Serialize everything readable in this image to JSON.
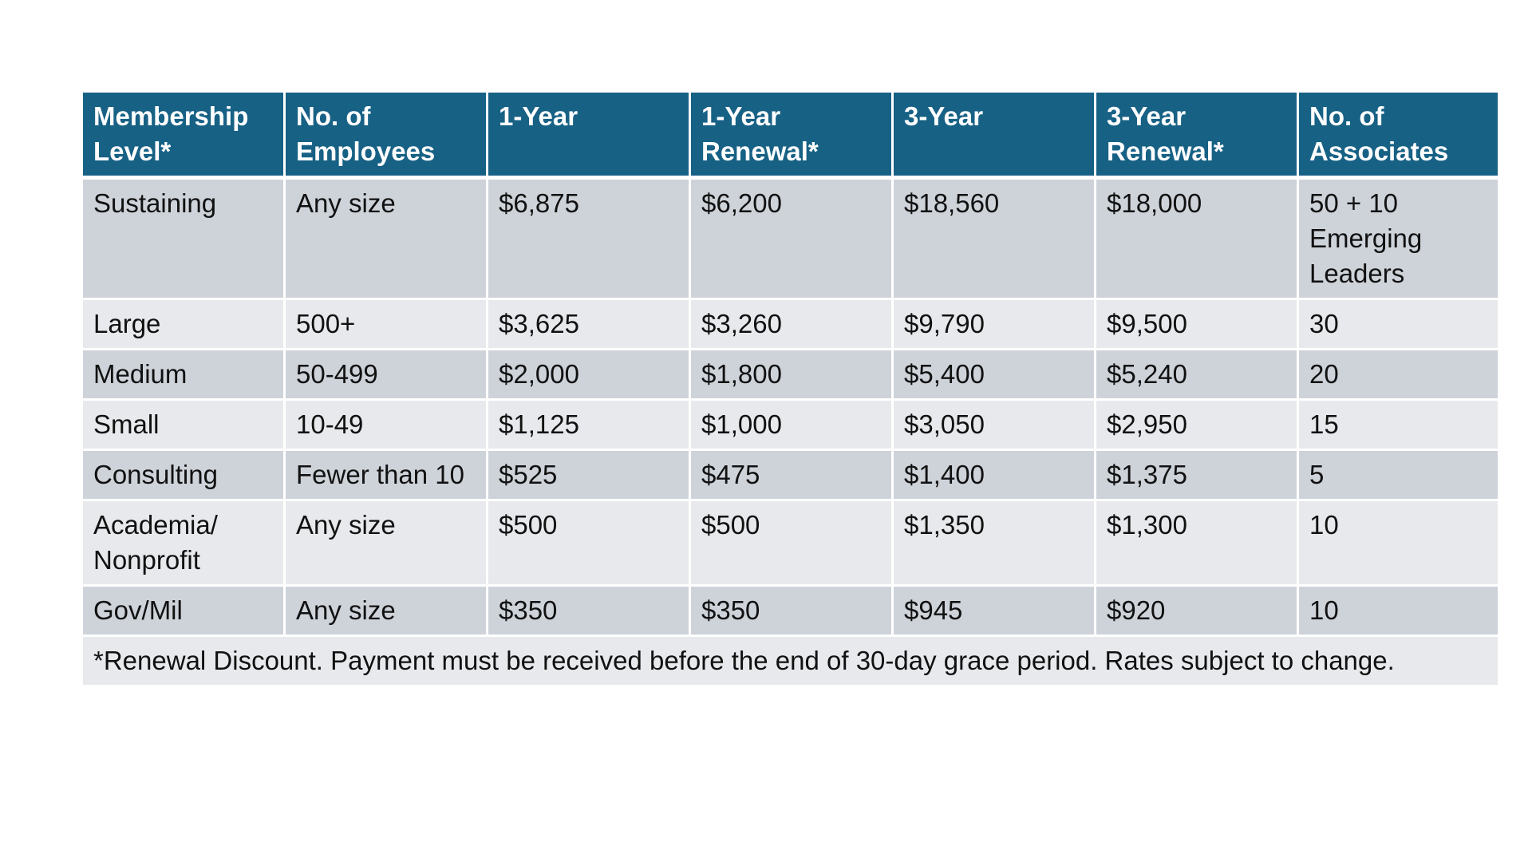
{
  "table": {
    "headers": [
      "Membership Level*",
      "No. of Employees",
      "1-Year",
      "1-Year Renewal*",
      "3-Year",
      "3-Year Renewal*",
      "No. of Associates"
    ],
    "rows": [
      [
        "Sustaining",
        "Any size",
        "$6,875",
        "$6,200",
        "$18,560",
        "$18,000",
        "50 + 10 Emerging Leaders"
      ],
      [
        "Large",
        "500+",
        "$3,625",
        "$3,260",
        "$9,790",
        "$9,500",
        "30"
      ],
      [
        "Medium",
        "50-499",
        "$2,000",
        "$1,800",
        "$5,400",
        "$5,240",
        "20"
      ],
      [
        "Small",
        "10-49",
        "$1,125",
        "$1,000",
        "$3,050",
        "$2,950",
        "15"
      ],
      [
        "Consulting",
        "Fewer than 10",
        "$525",
        "$475",
        "$1,400",
        "$1,375",
        "5"
      ],
      [
        "Academia/ Nonprofit",
        "Any size",
        "$500",
        "$500",
        "$1,350",
        "$1,300",
        "10"
      ],
      [
        "Gov/Mil",
        "Any size",
        "$350",
        "$350",
        "$945",
        "$920",
        "10"
      ]
    ],
    "footnote": "*Renewal Discount. Payment must be received before the end of 30-day grace period. Rates subject to change."
  },
  "colors": {
    "header_bg": "#176185",
    "header_text": "#ffffff",
    "row_dark": "#ced3da",
    "row_light": "#e7e9ec"
  }
}
